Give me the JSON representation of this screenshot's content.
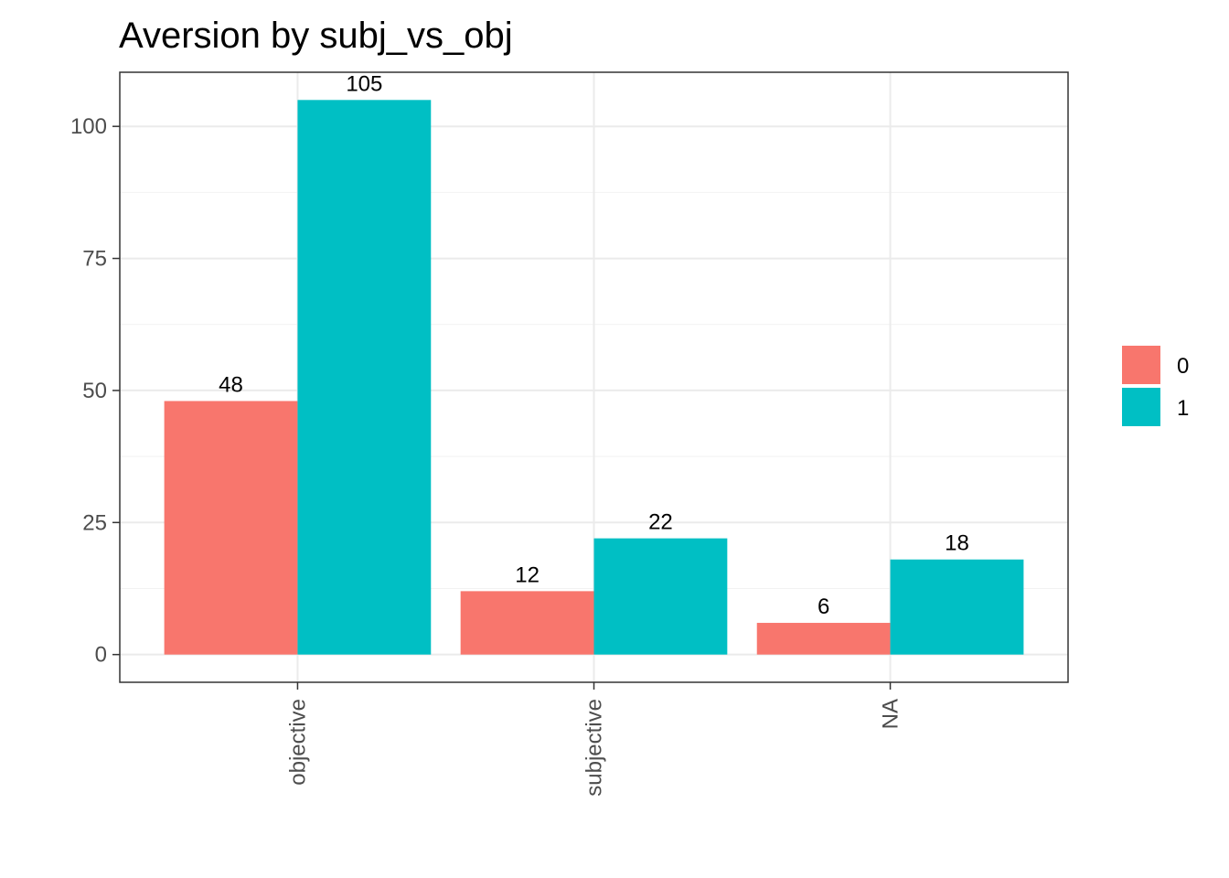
{
  "chart_data": {
    "type": "bar",
    "title": "Aversion by subj_vs_obj",
    "xlabel": "",
    "ylabel": "",
    "categories": [
      "objective",
      "subjective",
      "NA"
    ],
    "series": [
      {
        "name": "0",
        "values": [
          48,
          12,
          6
        ],
        "color": "#F8766D"
      },
      {
        "name": "1",
        "values": [
          105,
          22,
          18
        ],
        "color": "#00BFC4"
      }
    ],
    "ylim": [
      -5.25,
      110.25
    ],
    "y_ticks": [
      0,
      25,
      50,
      75,
      100
    ],
    "y_tick_labels": [
      "0",
      "25",
      "50",
      "75",
      "100"
    ],
    "grid": true,
    "legend_position": "right",
    "x_tick_label_rotation": "vertical"
  }
}
